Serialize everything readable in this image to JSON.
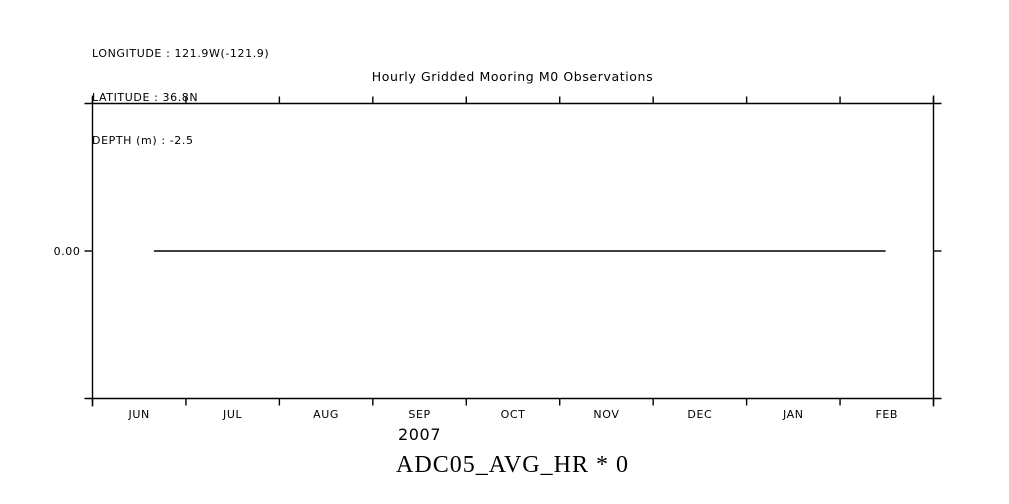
{
  "metadata": {
    "longitude": "LONGITUDE : 121.9W(-121.9)",
    "latitude": "LATITUDE : 36.8N",
    "depth": "DEPTH (m) : -2.5"
  },
  "chart_data": {
    "type": "line",
    "title": "Hourly Gridded Mooring M0 Observations",
    "x_axis": {
      "categories": [
        "JUN",
        "JUL",
        "AUG",
        "SEP",
        "OCT",
        "NOV",
        "DEC",
        "JAN",
        "FEB"
      ],
      "year_label": "2007",
      "span": "Jun 2007 - Feb 2008",
      "ticks_at_month_boundaries": true
    },
    "y_axis": {
      "ticks": [
        {
          "label": "0.00",
          "value": 0.0,
          "frac": 0.5
        }
      ]
    },
    "series": [
      {
        "name": "ADC05_AVG_HR * 0",
        "y_value": 0.0,
        "y_frac": 0.5,
        "x_start_frac": 0.073,
        "x_end_frac": 0.943,
        "x_start_date_approx": "2007-06-20",
        "x_end_date_approx": "2008-02-14",
        "color": "#000000",
        "shape": "constant horizontal line at 0.00"
      }
    ],
    "grid": false,
    "legend": false,
    "axis_color": "#000000",
    "background": "#ffffff"
  }
}
